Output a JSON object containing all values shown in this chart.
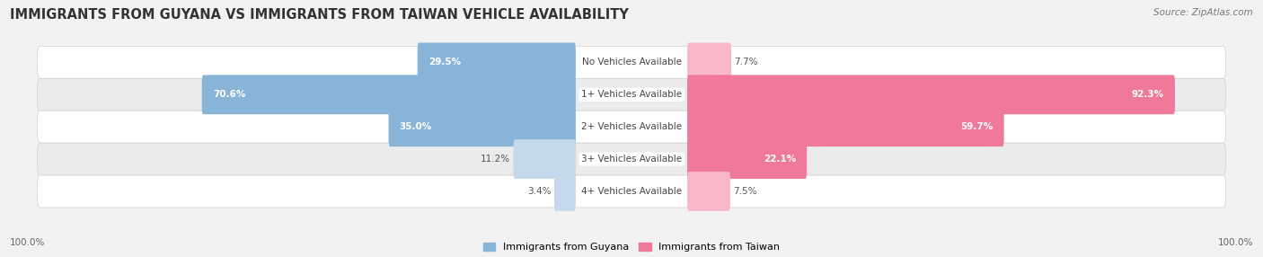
{
  "title": "IMMIGRANTS FROM GUYANA VS IMMIGRANTS FROM TAIWAN VEHICLE AVAILABILITY",
  "source": "Source: ZipAtlas.com",
  "categories": [
    "No Vehicles Available",
    "1+ Vehicles Available",
    "2+ Vehicles Available",
    "3+ Vehicles Available",
    "4+ Vehicles Available"
  ],
  "guyana_values": [
    29.5,
    70.6,
    35.0,
    11.2,
    3.4
  ],
  "taiwan_values": [
    7.7,
    92.3,
    59.7,
    22.1,
    7.5
  ],
  "guyana_color": "#88b4d8",
  "taiwan_color": "#f07898",
  "guyana_color_light": "#c5d9ec",
  "taiwan_color_light": "#f8b8ca",
  "guyana_label": "Immigrants from Guyana",
  "taiwan_label": "Immigrants from Taiwan",
  "bg_color": "#f2f2f2",
  "row_colors": [
    "#ffffff",
    "#ebebeb"
  ],
  "axis_label_left": "100.0%",
  "axis_label_right": "100.0%",
  "title_fontsize": 10.5,
  "source_fontsize": 7.5,
  "value_fontsize": 7.5,
  "cat_fontsize": 7.5,
  "legend_fontsize": 8,
  "max_val": 100.0
}
